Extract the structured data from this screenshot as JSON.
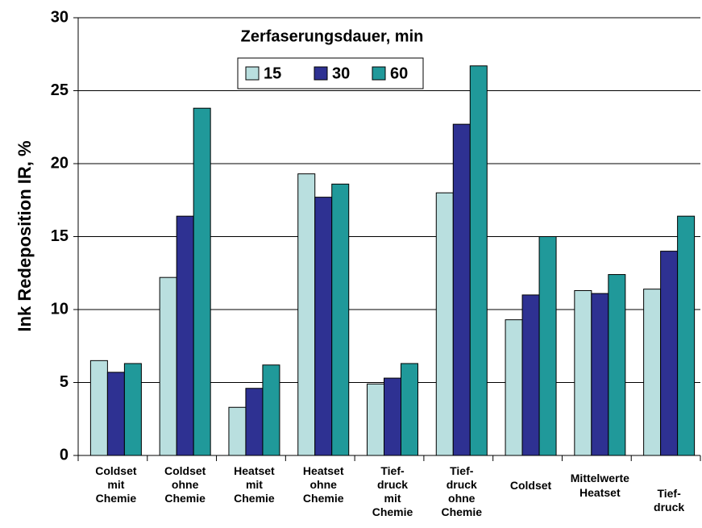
{
  "chart_data": {
    "type": "bar",
    "y_label": "Ink Redeposition IR, %",
    "legend_title": "Zerfaserungsdauer, min",
    "annotation": "Mittelwerte",
    "categories": [
      "Coldset\nmit\nChemie",
      "Coldset\nohne\nChemie",
      "Heatset\nmit\nChemie",
      "Heatset\nohne\nChemie",
      "Tief-\ndruck\nmit\nChemie",
      "Tief-\ndruck\nohne\nChemie",
      "Coldset",
      "Heatset",
      "Tief-\ndruck"
    ],
    "series": [
      {
        "name": "15",
        "color": "#b9dfdf",
        "values": [
          6.5,
          12.2,
          3.3,
          19.3,
          4.9,
          18.0,
          9.3,
          11.3,
          11.4
        ]
      },
      {
        "name": "30",
        "color": "#2e3192",
        "values": [
          5.7,
          16.4,
          4.6,
          17.7,
          5.3,
          22.7,
          11.0,
          11.1,
          14.0
        ]
      },
      {
        "name": "60",
        "color": "#20999a",
        "values": [
          6.3,
          23.8,
          6.2,
          18.6,
          6.3,
          26.7,
          15.0,
          12.4,
          16.4
        ]
      }
    ],
    "ylim": [
      0,
      30
    ],
    "yticks": [
      0,
      5,
      10,
      15,
      20,
      25,
      30
    ],
    "grid": true
  }
}
